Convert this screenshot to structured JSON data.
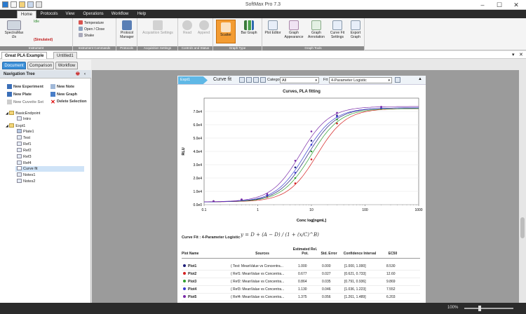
{
  "window": {
    "title": "SoftMax Pro 7.3"
  },
  "menu_tabs": [
    {
      "label": "Home",
      "active": true
    },
    {
      "label": "Protocols"
    },
    {
      "label": "View"
    },
    {
      "label": "Operations"
    },
    {
      "label": "Workflow"
    },
    {
      "label": "Help"
    }
  ],
  "ribbon": {
    "instrument": {
      "name": "SpectraMax i3x",
      "status": "(Simulated)",
      "idle": "Idle",
      "group": "Instrument"
    },
    "instrument_commands": {
      "items": [
        "Temperature",
        "Open / Close",
        "Shake"
      ],
      "group": "Instrument Commands"
    },
    "protocols": {
      "label": "Protocol Manager",
      "group": "Protocols"
    },
    "acquisition": {
      "label": "Acquisition Settings",
      "group": "Acquisition Settings"
    },
    "controls": {
      "read": "Read",
      "append": "Append",
      "group": "Controls and Status"
    },
    "graph_type": {
      "scatter": "Scatter",
      "bar": "Bar Graph",
      "group": "Graph Type"
    },
    "graph_tools": {
      "items": [
        "Plot Editor",
        "Graph Appearance",
        "Graph Annotation",
        "Curve Fit Settings",
        "Export Graph"
      ],
      "group": "Graph Tools"
    }
  },
  "doc_tabs": [
    {
      "label": "Great PLA Example",
      "active": true
    },
    {
      "label": "Untitled1"
    }
  ],
  "view_tabs": [
    {
      "label": "Document",
      "active": true
    },
    {
      "label": "Comparison"
    },
    {
      "label": "Workflow"
    }
  ],
  "nav": {
    "title": "Navigation Tree",
    "buttons": {
      "new_experiment": "New Experiment",
      "new_note": "New Note",
      "new_plate": "New Plate",
      "new_graph": "New Graph",
      "new_cuvette": "New Cuvette Set",
      "delete_selection": "Delete Selection"
    },
    "tree": [
      {
        "label": "BasicEndpoint",
        "level": 0
      },
      {
        "label": "Intro",
        "level": 1
      },
      {
        "label": "Expt1",
        "level": 0
      },
      {
        "label": "Plate1",
        "level": 1
      },
      {
        "label": "Test",
        "level": 1
      },
      {
        "label": "Ref1",
        "level": 1
      },
      {
        "label": "Ref2",
        "level": 1
      },
      {
        "label": "Ref3",
        "level": 1
      },
      {
        "label": "Ref4",
        "level": 1
      },
      {
        "label": "Curve fit",
        "level": 1,
        "selected": true
      },
      {
        "label": "Notes1",
        "level": 1
      },
      {
        "label": "Notes2",
        "level": 1
      }
    ]
  },
  "section": {
    "tag": "Expt1",
    "title": "Curve fit",
    "category_label": "Category",
    "category_value": "All",
    "fit_label": "Fit",
    "fit_value": "4-Parameter Logistic"
  },
  "chart_data": {
    "type": "scatter",
    "title": "Curves, PLA fitting",
    "xlabel": "Conc log[ngmL]",
    "ylabel": "RLU",
    "xscale": "log",
    "xlim": [
      0.1,
      1000
    ],
    "ylim": [
      0,
      80000
    ],
    "x_ticks": [
      "0.1",
      "1",
      "10",
      "100",
      "1000"
    ],
    "y_ticks": [
      "0.0e0",
      "1.0e4",
      "2.0e4",
      "3.0e4",
      "4.0e4",
      "5.0e4",
      "6.0e4",
      "7.0e4"
    ],
    "x": [
      0.15,
      0.5,
      1.5,
      5,
      10,
      30,
      200
    ],
    "series": [
      {
        "name": "Plot1",
        "color": "#1f1f7a",
        "values": [
          2500,
          3800,
          7000,
          28000,
          48000,
          67000,
          72500
        ]
      },
      {
        "name": "Plot2",
        "color": "#d42020",
        "values": [
          2600,
          3500,
          6000,
          16000,
          34000,
          61000,
          72000
        ]
      },
      {
        "name": "Plot3",
        "color": "#2e9e2e",
        "values": [
          2600,
          3600,
          6500,
          20000,
          40000,
          64000,
          72000
        ]
      },
      {
        "name": "Plot4",
        "color": "#3a3ad0",
        "values": [
          2500,
          3700,
          6800,
          24000,
          45000,
          66000,
          72500
        ]
      },
      {
        "name": "Plot5",
        "color": "#7a2aa8",
        "values": [
          2600,
          4000,
          8000,
          33000,
          55000,
          69000,
          73500
        ]
      }
    ]
  },
  "equation": {
    "label": "Curve Fit : 4-Parameter Logistic",
    "formula": "y = D + (A − D) / (1 + (x/C)^B)"
  },
  "table": {
    "headers": [
      "Plot Name",
      "Sources",
      "Estimated Rel. Pot.",
      "Std. Error",
      "Confidence Interval",
      "EC50"
    ],
    "rows": [
      {
        "name": "Plot1",
        "color": "#1f1f7a",
        "source": "( Test: MeanValue vs Concentra...",
        "rel": "1.000",
        "se": "0.000",
        "ci": "[1.000, 1.000]",
        "ec50": "8.530"
      },
      {
        "name": "Plot2",
        "color": "#d42020",
        "source": "( Ref1: MeanValue vs Concentra...",
        "rel": "0.677",
        "se": "0.027",
        "ci": "[0.621, 0.733]",
        "ec50": "12.60"
      },
      {
        "name": "Plot3",
        "color": "#2e9e2e",
        "source": "( Ref2: MeanValue vs Concentra...",
        "rel": "0.864",
        "se": "0.035",
        "ci": "[0.791, 0.936]",
        "ec50": "9.869"
      },
      {
        "name": "Plot4",
        "color": "#3a3ad0",
        "source": "( Ref3: MeanValue vs Concentra...",
        "rel": "1.130",
        "se": "0.046",
        "ci": "[1.036, 1.223]",
        "ec50": "7.552"
      },
      {
        "name": "Plot5",
        "color": "#7a2aa8",
        "source": "( Ref4: MeanValue vs Concentra...",
        "rel": "1.375",
        "se": "0.056",
        "ci": "[1.261, 1.489]",
        "ec50": "6.203"
      }
    ]
  },
  "status": {
    "zoom": "100%"
  }
}
